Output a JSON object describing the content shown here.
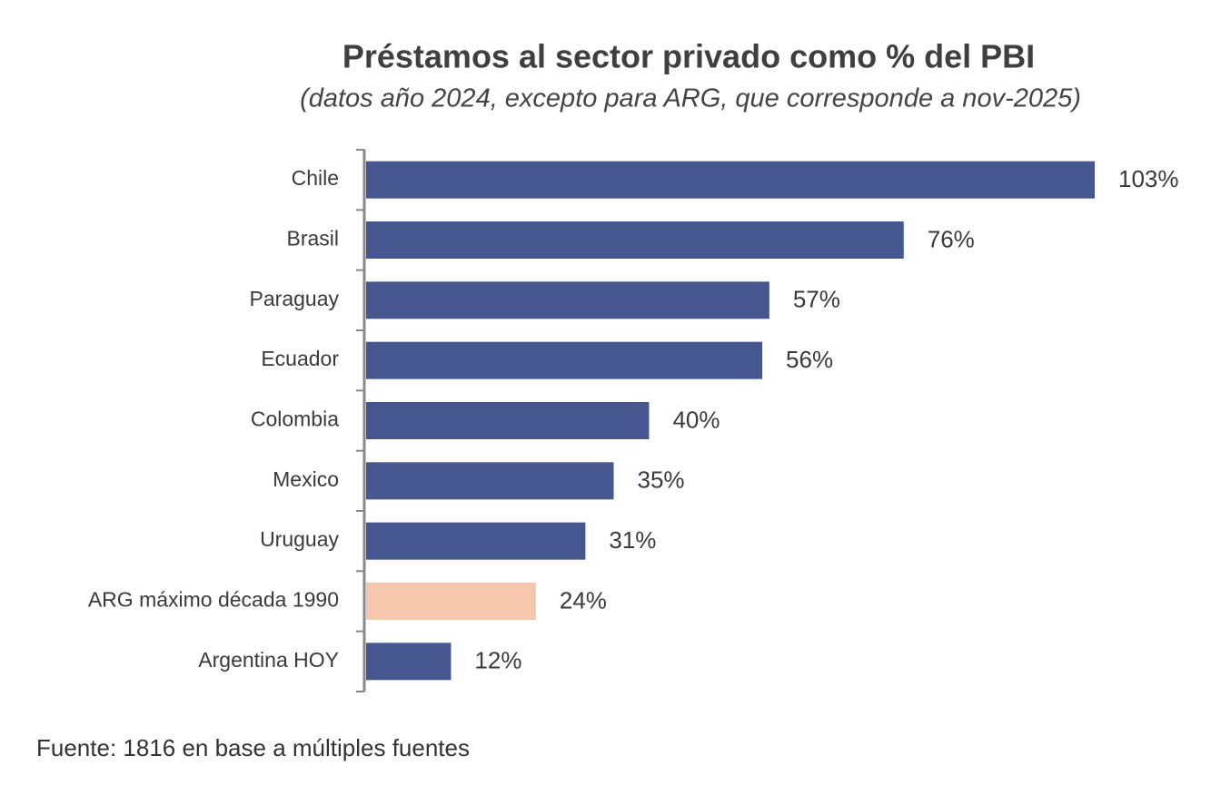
{
  "chart_data": {
    "type": "bar",
    "horizontal": true,
    "title": "Préstamos al sector privado como % del PBI",
    "subtitle": "(datos año 2024, excepto para ARG, que corresponde a nov-2025)",
    "categories": [
      "Chile",
      "Brasil",
      "Paraguay",
      "Ecuador",
      "Colombia",
      "Mexico",
      "Uruguay",
      "ARG máximo década 1990",
      "Argentina HOY"
    ],
    "values": [
      103,
      76,
      57,
      56,
      40,
      35,
      31,
      24,
      12
    ],
    "value_labels": [
      "103%",
      "76%",
      "57%",
      "56%",
      "40%",
      "35%",
      "31%",
      "24%",
      "12%"
    ],
    "colors": [
      "#46578f",
      "#46578f",
      "#46578f",
      "#46578f",
      "#46578f",
      "#46578f",
      "#46578f",
      "#f6c6ad",
      "#46578f"
    ],
    "source": "Fuente: 1816 en base a múltiples fuentes"
  }
}
